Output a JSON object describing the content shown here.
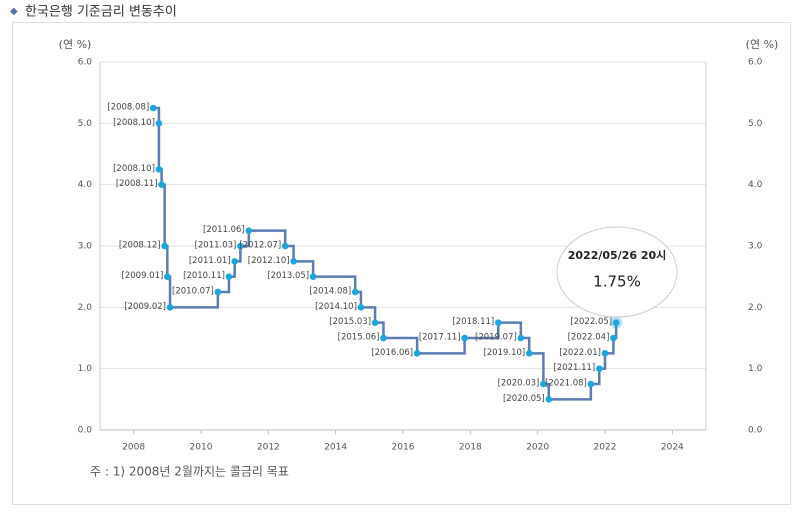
{
  "header": {
    "title": "한국은행 기준금리 변동추이"
  },
  "chart_data": {
    "type": "step-line",
    "y_label": "(연 %)",
    "xlim": [
      2007,
      2025
    ],
    "xticks": [
      2008,
      2010,
      2012,
      2014,
      2016,
      2018,
      2020,
      2022,
      2024
    ],
    "ylim": [
      0,
      6
    ],
    "yticks": [
      {
        "value": 0,
        "label": "0.0"
      },
      {
        "value": 1,
        "label": "1.0"
      },
      {
        "value": 2,
        "label": "2.0"
      },
      {
        "value": 3,
        "label": "3.0"
      },
      {
        "value": 4,
        "label": "4.0"
      },
      {
        "value": 5,
        "label": "5.0"
      },
      {
        "value": 6,
        "label": "6.0"
      }
    ],
    "grid": true,
    "series": [
      {
        "color": "#5b7bb5",
        "point_color": "#1aa6de",
        "x": [
          2008.58,
          2008.75,
          2008.75,
          2008.83,
          2008.92,
          2009.0,
          2009.08,
          2010.5,
          2010.83,
          2011.0,
          2011.17,
          2011.42,
          2012.5,
          2012.75,
          2013.33,
          2014.58,
          2014.75,
          2015.17,
          2015.42,
          2016.42,
          2017.83,
          2018.83,
          2019.5,
          2019.75,
          2020.17,
          2020.33,
          2021.58,
          2021.83,
          2022.0,
          2022.25,
          2022.33
        ],
        "values": [
          5.25,
          5.0,
          4.25,
          4.0,
          3.0,
          2.5,
          2.0,
          2.25,
          2.5,
          2.75,
          3.0,
          3.25,
          3.0,
          2.75,
          2.5,
          2.25,
          2.0,
          1.75,
          1.5,
          1.25,
          1.5,
          1.75,
          1.5,
          1.25,
          0.75,
          0.5,
          0.75,
          1.0,
          1.25,
          1.5,
          1.75
        ],
        "point_labels": [
          "[2008.08]",
          "[2008.10]",
          "[2008.10]",
          "[2008.11]",
          "[2008.12]",
          "[2009.01]",
          "[2009.02]",
          "[2010.07]",
          "[2010.11]",
          "[2011.01]",
          "[2011.03]",
          "[2011.06]",
          "[2012.07]",
          "[2012.10]",
          "[2013.05]",
          "[2014.08]",
          "[2014.10]",
          "[2015.03]",
          "[2015.06]",
          "[2016.06]",
          "[2017.11]",
          "[2018.11]",
          "[2019.07]",
          "[2019.10]",
          "[2020.03]",
          "[2020.05]",
          "[2021.08]",
          "[2021.11]",
          "[2022.01]",
          "[2022.04]",
          "[2022.05]"
        ]
      }
    ],
    "tooltip": {
      "title": "2022/05/26 20시",
      "value_label": "1.75%"
    },
    "note": "주 : 1) 2008년 2월까지는 콜금리 목표"
  }
}
